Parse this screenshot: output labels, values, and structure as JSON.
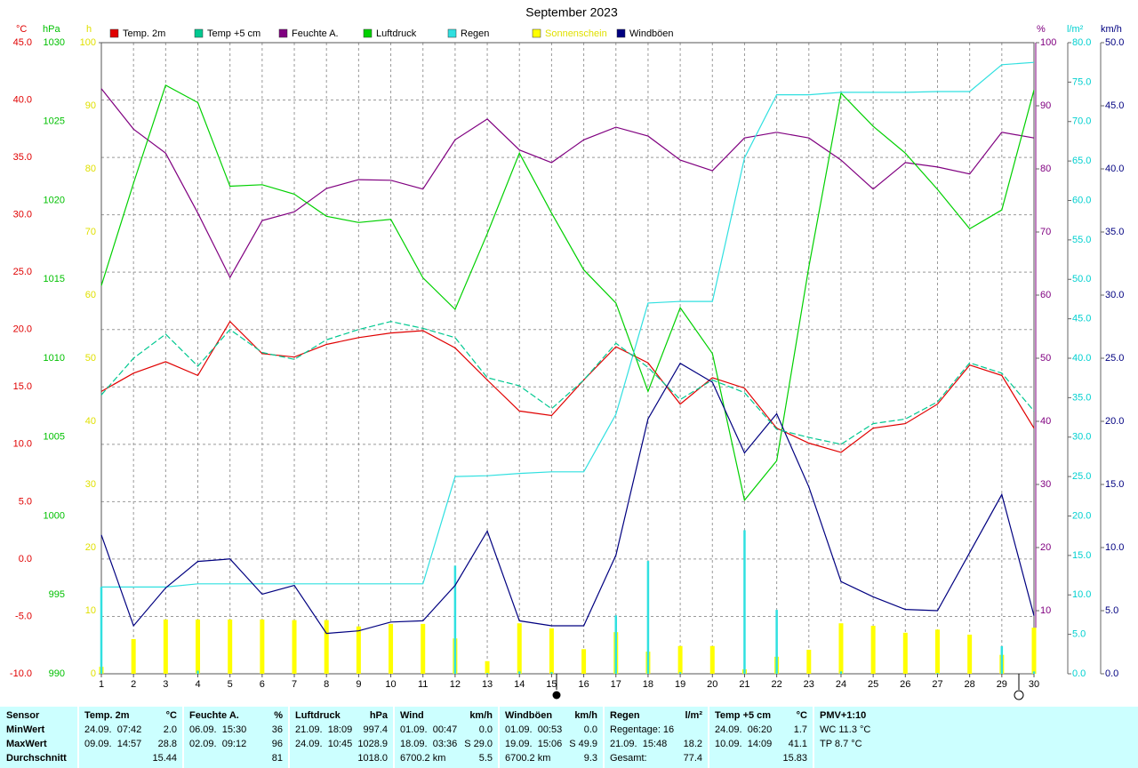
{
  "chart_data": {
    "type": "line",
    "title": "September 2023",
    "categories": [
      "1",
      "2",
      "3",
      "4",
      "5",
      "6",
      "7",
      "8",
      "9",
      "10",
      "11",
      "12",
      "13",
      "14",
      "15",
      "16",
      "17",
      "18",
      "19",
      "20",
      "21",
      "22",
      "23",
      "24",
      "25",
      "26",
      "27",
      "28",
      "29",
      "30"
    ],
    "axes": [
      {
        "label": "°C",
        "side": "left",
        "color": "#e00000",
        "lim": [
          -10,
          45
        ],
        "grid": true,
        "ticks": [
          {
            "value": -10,
            "label": "-10.0"
          },
          {
            "value": -5,
            "label": "-5.0"
          },
          {
            "value": 0,
            "label": "0.0"
          },
          {
            "value": 5,
            "label": "5.0"
          },
          {
            "value": 10,
            "label": "10.0"
          },
          {
            "value": 15,
            "label": "15.0"
          },
          {
            "value": 20,
            "label": "20.0"
          },
          {
            "value": 25,
            "label": "25.0"
          },
          {
            "value": 30,
            "label": "30.0"
          },
          {
            "value": 35,
            "label": "35.0"
          },
          {
            "value": 40,
            "label": "40.0"
          },
          {
            "value": 45,
            "label": "45.0"
          }
        ]
      },
      {
        "label": "hPa",
        "side": "left",
        "color": "#00c000",
        "lim": [
          990,
          1030
        ],
        "ticks": [
          990,
          995,
          1000,
          1005,
          1010,
          1015,
          1020,
          1025,
          1030
        ]
      },
      {
        "label": "h",
        "side": "left",
        "color": "#e0e000",
        "lim": [
          0,
          100
        ],
        "ticks": [
          0,
          10,
          20,
          30,
          40,
          50,
          60,
          70,
          80,
          90,
          100
        ]
      },
      {
        "label": "%",
        "side": "right",
        "color": "#800080",
        "lim": [
          0,
          100
        ],
        "ticks": [
          10,
          20,
          30,
          40,
          50,
          60,
          70,
          80,
          90,
          100
        ]
      },
      {
        "label": "l/m²",
        "side": "right",
        "color": "#00d0d0",
        "lim": [
          0,
          80
        ],
        "ticks": [
          {
            "value": 0,
            "label": "0.0"
          },
          {
            "value": 5,
            "label": "5.0"
          },
          {
            "value": 10,
            "label": "10.0"
          },
          {
            "value": 15,
            "label": "15.0"
          },
          {
            "value": 20,
            "label": "20.0"
          },
          {
            "value": 25,
            "label": "25.0"
          },
          {
            "value": 30,
            "label": "30.0"
          },
          {
            "value": 35,
            "label": "35.0"
          },
          {
            "value": 40,
            "label": "40.0"
          },
          {
            "value": 45,
            "label": "45.0"
          },
          {
            "value": 50,
            "label": "50.0"
          },
          {
            "value": 55,
            "label": "55.0"
          },
          {
            "value": 60,
            "label": "60.0"
          },
          {
            "value": 65,
            "label": "65.0"
          },
          {
            "value": 70,
            "label": "70.0"
          },
          {
            "value": 75,
            "label": "75.0"
          },
          {
            "value": 80,
            "label": "80.0"
          }
        ]
      },
      {
        "label": "km/h",
        "side": "right",
        "color": "#000080",
        "lim": [
          0,
          50
        ],
        "ticks": [
          {
            "value": 0,
            "label": "0.0"
          },
          {
            "value": 5,
            "label": "5.0"
          },
          {
            "value": 10,
            "label": "10.0"
          },
          {
            "value": 15,
            "label": "15.0"
          },
          {
            "value": 20,
            "label": "20.0"
          },
          {
            "value": 25,
            "label": "25.0"
          },
          {
            "value": 30,
            "label": "30.0"
          },
          {
            "value": 35,
            "label": "35.0"
          },
          {
            "value": 40,
            "label": "40.0"
          },
          {
            "value": 45,
            "label": "45.0"
          },
          {
            "value": 50,
            "label": "50.0"
          }
        ]
      }
    ],
    "series": [
      {
        "name": "Temp. 2m",
        "color": "#e00000",
        "axis": 0,
        "kind": "line",
        "values": [
          14.6,
          16.2,
          17.2,
          16.0,
          20.7,
          17.9,
          17.6,
          18.7,
          19.3,
          19.7,
          19.9,
          18.4,
          15.6,
          12.9,
          12.5,
          15.6,
          18.5,
          17.1,
          13.5,
          15.8,
          14.9,
          11.4,
          10.1,
          9.3,
          11.4,
          11.8,
          13.5,
          16.9,
          16.0,
          11.4
        ]
      },
      {
        "name": "Temp +5 cm",
        "color": "#00c890",
        "axis": 0,
        "kind": "dashed",
        "values": [
          14.3,
          17.5,
          19.6,
          16.8,
          20.0,
          18.0,
          17.4,
          19.1,
          20.0,
          20.7,
          20.1,
          19.3,
          15.8,
          15.1,
          13.1,
          15.6,
          18.8,
          16.7,
          13.9,
          15.6,
          14.5,
          11.3,
          10.6,
          10.0,
          11.8,
          12.2,
          13.7,
          17.1,
          16.2,
          12.9
        ]
      },
      {
        "name": "Feuchte A.",
        "color": "#800080",
        "axis": 3,
        "kind": "line",
        "values": [
          92.7,
          86.3,
          82.5,
          73.0,
          62.8,
          71.8,
          73.2,
          76.9,
          78.3,
          78.2,
          76.8,
          84.6,
          87.9,
          83.0,
          81.0,
          84.6,
          86.6,
          85.2,
          81.4,
          79.7,
          84.9,
          85.8,
          84.9,
          81.4,
          76.8,
          81.0,
          80.3,
          79.2,
          85.8,
          84.9
        ]
      },
      {
        "name": "Luftdruck",
        "color": "#00d000",
        "axis": 1,
        "kind": "line",
        "values": [
          1014.6,
          1021.1,
          1027.3,
          1026.2,
          1020.9,
          1021.0,
          1020.4,
          1019.0,
          1018.6,
          1018.8,
          1015.1,
          1013.1,
          1017.9,
          1023.0,
          1019.2,
          1015.6,
          1013.5,
          1007.9,
          1013.2,
          1010.3,
          1001.0,
          1003.5,
          1015.8,
          1026.8,
          1024.7,
          1023.0,
          1020.7,
          1018.2,
          1019.4,
          1027.0
        ]
      },
      {
        "name": "Regen",
        "color": "#30e0e0",
        "axis": 4,
        "kind": "line",
        "values": [
          11.0,
          11.0,
          11.0,
          11.4,
          11.4,
          11.4,
          11.4,
          11.4,
          11.4,
          11.4,
          11.4,
          25.0,
          25.1,
          25.4,
          25.6,
          25.6,
          32.9,
          47.0,
          47.2,
          47.2,
          65.4,
          73.4,
          73.4,
          73.7,
          73.7,
          73.7,
          73.8,
          73.8,
          77.2,
          77.5
        ]
      },
      {
        "color": "#30e0e0",
        "axis": 4,
        "kind": "thin-bars",
        "values": [
          11.0,
          0,
          0,
          0.4,
          0,
          0,
          0,
          0,
          0,
          0,
          0,
          13.7,
          0.1,
          0.3,
          0.2,
          0,
          7.4,
          14.3,
          0.2,
          0,
          18.2,
          8.1,
          0,
          0.3,
          0,
          0,
          0.1,
          0,
          3.5,
          0.3
        ]
      },
      {
        "name": "Sonnenschein",
        "color": "#ffff00",
        "legend_label_color": "#e0e000",
        "axis": 2,
        "kind": "bars",
        "values": [
          1.1,
          5.5,
          8.6,
          8.6,
          8.6,
          8.6,
          8.5,
          8.5,
          7.5,
          7.9,
          7.9,
          5.6,
          2.0,
          8.0,
          7.2,
          3.9,
          6.6,
          3.5,
          4.4,
          4.4,
          0.7,
          2.7,
          3.8,
          8.0,
          7.6,
          6.5,
          7.0,
          6.2,
          3.0,
          7.3
        ]
      },
      {
        "name": "Windböen",
        "color": "#000080",
        "axis": 5,
        "kind": "line",
        "values": [
          11.0,
          3.8,
          6.8,
          8.9,
          9.1,
          6.3,
          7.0,
          3.2,
          3.4,
          4.1,
          4.2,
          7.0,
          11.3,
          4.2,
          3.8,
          3.8,
          9.4,
          20.2,
          24.6,
          23.1,
          17.5,
          20.6,
          14.8,
          7.3,
          6.1,
          5.1,
          5.0,
          9.6,
          14.2,
          4.6
        ]
      }
    ]
  },
  "stats_table": {
    "columns": [
      {
        "header": {
          "left": "Sensor"
        },
        "rows": [
          {
            "left": "MinWert"
          },
          {
            "left": "MaxWert"
          },
          {
            "left": "Durchschnitt"
          }
        ]
      },
      {
        "header": {
          "left": "Temp. 2m",
          "right": "°C"
        },
        "rows": [
          {
            "left": "24.09.  07:42",
            "right": "2.0"
          },
          {
            "left": "09.09.  14:57",
            "right": "28.8"
          },
          {
            "right": "15.44"
          }
        ]
      },
      {
        "header": {
          "left": "Feuchte A.",
          "right": "%"
        },
        "rows": [
          {
            "left": "06.09.  15:30",
            "right": "36"
          },
          {
            "left": "02.09.  09:12",
            "right": "96"
          },
          {
            "right": "81"
          }
        ]
      },
      {
        "header": {
          "left": "Luftdruck",
          "right": "hPa"
        },
        "rows": [
          {
            "left": "21.09.  18:09",
            "right": "997.4"
          },
          {
            "left": "24.09.  10:45",
            "right": "1028.9"
          },
          {
            "right": "1018.0"
          }
        ]
      },
      {
        "header": {
          "left": "Wind",
          "right": "km/h"
        },
        "rows": [
          {
            "left": "01.09.  00:47",
            "right": "0.0"
          },
          {
            "left": "18.09.  03:36",
            "right": "S 29.0"
          },
          {
            "left": "6700.2 km",
            "right": "5.5"
          }
        ]
      },
      {
        "header": {
          "left": "Windböen",
          "right": "km/h"
        },
        "rows": [
          {
            "left": "01.09.  00:53",
            "right": "0.0"
          },
          {
            "left": "19.09.  15:06",
            "right": "S 49.9"
          },
          {
            "left": "6700.2 km",
            "right": "9.3"
          }
        ]
      },
      {
        "header": {
          "left": "Regen",
          "right": "l/m²"
        },
        "rows": [
          {
            "left": "Regentage: 16"
          },
          {
            "left": "21.09.  15:48",
            "right": "18.2"
          },
          {
            "left": "Gesamt:",
            "right": "77.4"
          }
        ]
      },
      {
        "header": {
          "left": "Temp +5 cm",
          "right": "°C"
        },
        "rows": [
          {
            "left": "24.09.  06:20",
            "right": "1.7"
          },
          {
            "left": "10.09.  14:09",
            "right": "41.1"
          },
          {
            "right": "15.83"
          }
        ]
      },
      {
        "header": {
          "left": "PMV+1:10"
        },
        "rows": [
          {
            "left": "WC 11.3 °C"
          },
          {
            "left": "TP 8.7 °C"
          }
        ]
      }
    ]
  }
}
